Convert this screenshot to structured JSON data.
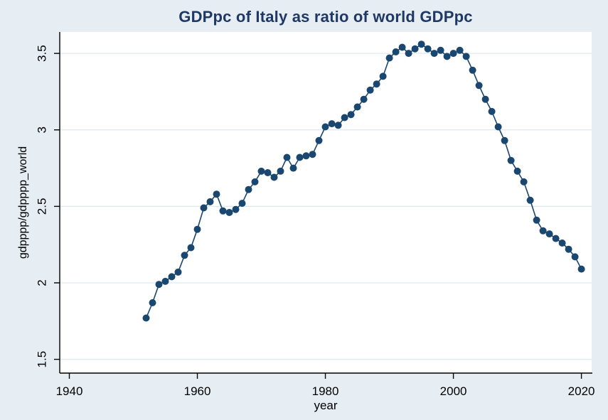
{
  "chart_data": {
    "type": "line",
    "title": "GDPpc of Italy as ratio of world GDPpc",
    "xlabel": "year",
    "ylabel": "gdpppp/gdpppp_world",
    "series_name": "gdpppp/gdpppp_world",
    "x": [
      1952,
      1953,
      1954,
      1955,
      1956,
      1957,
      1958,
      1959,
      1960,
      1961,
      1962,
      1963,
      1964,
      1965,
      1966,
      1967,
      1968,
      1969,
      1970,
      1971,
      1972,
      1973,
      1974,
      1975,
      1976,
      1977,
      1978,
      1979,
      1980,
      1981,
      1982,
      1983,
      1984,
      1985,
      1986,
      1987,
      1988,
      1989,
      1990,
      1991,
      1992,
      1993,
      1994,
      1995,
      1996,
      1997,
      1998,
      1999,
      2000,
      2001,
      2002,
      2003,
      2004,
      2005,
      2006,
      2007,
      2008,
      2009,
      2010,
      2011,
      2012,
      2013,
      2014,
      2015,
      2016,
      2017,
      2018,
      2019,
      2020
    ],
    "values": [
      1.77,
      1.87,
      1.99,
      2.01,
      2.04,
      2.07,
      2.18,
      2.23,
      2.35,
      2.49,
      2.53,
      2.58,
      2.47,
      2.46,
      2.48,
      2.52,
      2.61,
      2.66,
      2.73,
      2.72,
      2.69,
      2.73,
      2.82,
      2.75,
      2.82,
      2.83,
      2.84,
      2.93,
      3.02,
      3.04,
      3.03,
      3.08,
      3.1,
      3.15,
      3.2,
      3.26,
      3.3,
      3.35,
      3.47,
      3.51,
      3.54,
      3.5,
      3.53,
      3.56,
      3.53,
      3.5,
      3.52,
      3.48,
      3.5,
      3.52,
      3.48,
      3.39,
      3.29,
      3.2,
      3.12,
      3.02,
      2.93,
      2.8,
      2.73,
      2.66,
      2.54,
      2.41,
      2.34,
      2.32,
      2.29,
      2.26,
      2.22,
      2.17,
      2.09
    ],
    "xticks": [
      1940,
      1960,
      1980,
      2000,
      2020
    ],
    "yticks": [
      1.5,
      2,
      2.5,
      3,
      3.5
    ],
    "ytick_labels": [
      "1.5",
      "2",
      "2.5",
      "3",
      "3.5"
    ],
    "xlim": [
      1938.5,
      2021.6
    ],
    "ylim": [
      1.41,
      3.64
    ],
    "grid": "horizontal",
    "legend": "none",
    "marker": "filled-circle",
    "colors": {
      "line": "#1a476f",
      "marker": "#1a476f",
      "background": "#e6eef4",
      "plot_background": "#ffffff",
      "gridline": "#dde9f0",
      "axis": "#000000",
      "title": "#1f3864",
      "tick_text": "#000000"
    }
  }
}
